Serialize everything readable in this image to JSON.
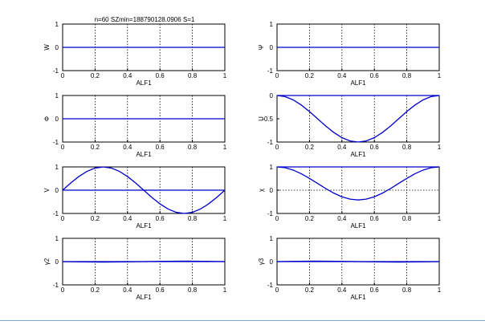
{
  "title": "n=60 SZmin=188790128.0906 S=1",
  "colors": {
    "line": "#0000cc",
    "axis": "#000000",
    "grid": "#000000",
    "background": "#ffffff"
  },
  "chart_data": [
    {
      "type": "line",
      "ylabel": "W",
      "xlabel": "ALF1",
      "xlim": [
        0,
        1
      ],
      "ylim": [
        -1,
        1
      ],
      "xticks": [
        "0",
        "0.2",
        "0.4",
        "0.6",
        "0.8",
        "1"
      ],
      "yticks": [
        "-1",
        "0",
        "1"
      ],
      "grid": "x-dotted",
      "series": [
        {
          "x": [
            0,
            0.25,
            0.5,
            0.75,
            1
          ],
          "y": [
            0,
            0,
            0,
            0,
            0
          ]
        }
      ]
    },
    {
      "type": "line",
      "ylabel": "Ψ",
      "xlabel": "ALF1",
      "xlim": [
        0,
        1
      ],
      "ylim": [
        -1,
        1
      ],
      "xticks": [
        "0",
        "0.2",
        "0.4",
        "0.6",
        "0.8",
        "1"
      ],
      "yticks": [
        "-1",
        "0",
        "1"
      ],
      "grid": "x-dotted",
      "series": [
        {
          "x": [
            0,
            0.25,
            0.5,
            0.75,
            1
          ],
          "y": [
            0,
            0,
            0,
            0,
            0
          ]
        }
      ]
    },
    {
      "type": "line",
      "ylabel": "Φ",
      "xlabel": "ALF1",
      "xlim": [
        0,
        1
      ],
      "ylim": [
        -1,
        1
      ],
      "xticks": [
        "0",
        "0.2",
        "0.4",
        "0.6",
        "0.8",
        "1"
      ],
      "yticks": [
        "-1",
        "0",
        "1"
      ],
      "grid": "x-dotted",
      "series": [
        {
          "x": [
            0,
            0.25,
            0.5,
            0.75,
            1
          ],
          "y": [
            0,
            0,
            0,
            0,
            0
          ]
        }
      ]
    },
    {
      "type": "line",
      "ylabel": "U",
      "xlabel": "ALF1",
      "xlim": [
        0,
        1
      ],
      "ylim": [
        -1,
        0
      ],
      "xticks": [
        "0",
        "0.2",
        "0.4",
        "0.6",
        "0.8",
        "1"
      ],
      "yticks": [
        "-1",
        "-0.5",
        "0"
      ],
      "grid": "x-dotted",
      "series": [
        {
          "x": [
            0,
            0.05,
            0.1,
            0.15,
            0.2,
            0.25,
            0.3,
            0.35,
            0.4,
            0.45,
            0.5,
            0.55,
            0.6,
            0.65,
            0.7,
            0.75,
            0.8,
            0.85,
            0.9,
            0.95,
            1
          ],
          "y": [
            0,
            -0.024,
            -0.095,
            -0.206,
            -0.345,
            -0.5,
            -0.655,
            -0.794,
            -0.905,
            -0.976,
            -1,
            -0.976,
            -0.905,
            -0.794,
            -0.655,
            -0.5,
            -0.345,
            -0.206,
            -0.095,
            -0.024,
            0
          ]
        },
        {
          "x": [
            0,
            1
          ],
          "y": [
            0,
            0
          ]
        }
      ]
    },
    {
      "type": "line",
      "ylabel": "V",
      "xlabel": "ALF1",
      "xlim": [
        0,
        1
      ],
      "ylim": [
        -1,
        1
      ],
      "xticks": [
        "0",
        "0.2",
        "0.4",
        "0.6",
        "0.8",
        "1"
      ],
      "yticks": [
        "-1",
        "0",
        "1"
      ],
      "grid": "x-dotted",
      "series": [
        {
          "x": [
            0,
            0.05,
            0.1,
            0.15,
            0.2,
            0.25,
            0.3,
            0.35,
            0.4,
            0.45,
            0.5,
            0.55,
            0.6,
            0.65,
            0.7,
            0.75,
            0.8,
            0.85,
            0.9,
            0.95,
            1
          ],
          "y": [
            0,
            0.309,
            0.588,
            0.809,
            0.951,
            1,
            0.951,
            0.809,
            0.588,
            0.309,
            0,
            -0.309,
            -0.588,
            -0.809,
            -0.951,
            -1,
            -0.951,
            -0.809,
            -0.588,
            -0.309,
            0
          ]
        },
        {
          "x": [
            0,
            1
          ],
          "y": [
            0,
            0
          ]
        }
      ]
    },
    {
      "type": "line",
      "ylabel": "χ",
      "xlabel": "ALF1",
      "xlim": [
        0,
        1
      ],
      "ylim": [
        -1,
        1
      ],
      "xticks": [
        "0",
        "0.2",
        "0.4",
        "0.6",
        "0.8",
        "1"
      ],
      "yticks": [
        "-1",
        "0",
        "1"
      ],
      "grid": "xy-dotted",
      "series": [
        {
          "x": [
            0,
            0.05,
            0.1,
            0.15,
            0.2,
            0.25,
            0.3,
            0.35,
            0.4,
            0.45,
            0.5,
            0.55,
            0.6,
            0.65,
            0.7,
            0.75,
            0.8,
            0.85,
            0.9,
            0.95,
            1
          ],
          "y": [
            1,
            0.965,
            0.864,
            0.706,
            0.508,
            0.29,
            0.072,
            -0.126,
            -0.284,
            -0.385,
            -0.42,
            -0.385,
            -0.284,
            -0.126,
            0.072,
            0.29,
            0.508,
            0.706,
            0.864,
            0.965,
            1
          ]
        },
        {
          "x": [
            0,
            1
          ],
          "y": [
            1,
            1
          ]
        }
      ]
    },
    {
      "type": "line",
      "ylabel": "γ2",
      "xlabel": "ALF1",
      "xlim": [
        0,
        1
      ],
      "ylim": [
        -1,
        1
      ],
      "xticks": [
        "0",
        "0.2",
        "0.4",
        "0.6",
        "0.8",
        "1"
      ],
      "yticks": [
        "-1",
        "0",
        "1"
      ],
      "grid": "x-dotted",
      "series": [
        {
          "x": [
            0,
            0.125,
            0.25,
            0.375,
            0.5,
            0.625,
            0.75,
            0.875,
            1
          ],
          "y": [
            0,
            -0.014,
            -0.02,
            -0.014,
            0,
            0.014,
            0.02,
            0.014,
            0
          ]
        },
        {
          "x": [
            0,
            1
          ],
          "y": [
            0,
            0
          ]
        }
      ]
    },
    {
      "type": "line",
      "ylabel": "γ3",
      "xlabel": "ALF1",
      "xlim": [
        0,
        1
      ],
      "ylim": [
        -1,
        1
      ],
      "xticks": [
        "0",
        "0.2",
        "0.4",
        "0.6",
        "0.8",
        "1"
      ],
      "yticks": [
        "-1",
        "0",
        "1"
      ],
      "grid": "x-dotted",
      "series": [
        {
          "x": [
            0,
            0.125,
            0.25,
            0.375,
            0.5,
            0.625,
            0.75,
            0.875,
            1
          ],
          "y": [
            0,
            0.014,
            0.02,
            0.014,
            0,
            -0.014,
            -0.02,
            -0.014,
            0
          ]
        },
        {
          "x": [
            0,
            1
          ],
          "y": [
            0,
            0
          ]
        }
      ]
    }
  ]
}
